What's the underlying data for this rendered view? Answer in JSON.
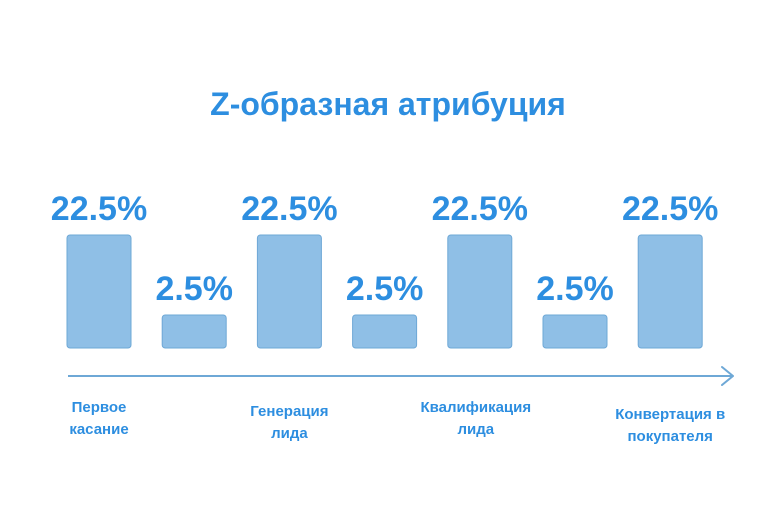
{
  "chart_data": {
    "type": "bar",
    "title": "Z-образная атрибуция",
    "categories": [
      "",
      "",
      "",
      "",
      "",
      "",
      ""
    ],
    "values": [
      22.5,
      2.5,
      22.5,
      2.5,
      22.5,
      2.5,
      22.5
    ],
    "value_labels": [
      "22.5%",
      "2.5%",
      "22.5%",
      "2.5%",
      "22.5%",
      "2.5%",
      "22.5%"
    ],
    "stages": [
      {
        "lines": [
          "Первое",
          "касание"
        ]
      },
      {
        "lines": [
          "Генерация",
          "лида"
        ]
      },
      {
        "lines": [
          "Квалификация",
          "лида"
        ]
      },
      {
        "lines": [
          "Конвертация в",
          "покупателя"
        ]
      }
    ],
    "ylim": [
      0,
      22.5
    ],
    "grid": false,
    "legend": "none",
    "colors": {
      "bar_fill": "#8fbfe6",
      "bar_stroke": "#6ea8d6",
      "text": "#2d8ee0",
      "axis": "#6ea8d6"
    }
  }
}
